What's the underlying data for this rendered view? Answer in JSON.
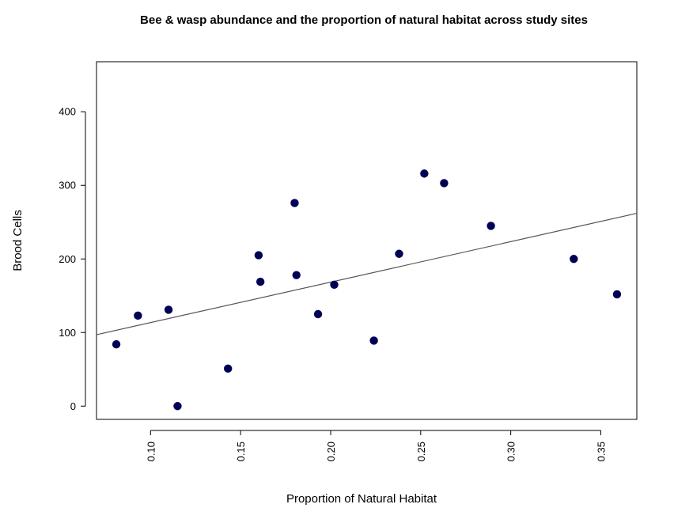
{
  "chart_data": {
    "type": "scatter",
    "title": "Bee & wasp abundance and the proportion of natural habitat across study sites",
    "xlabel": "Proportion of Natural Habitat",
    "ylabel": "Brood Cells",
    "xlim": [
      0.07,
      0.37
    ],
    "ylim": [
      -18,
      468
    ],
    "x_ticks": [
      "0.10",
      "0.15",
      "0.20",
      "0.25",
      "0.30",
      "0.35"
    ],
    "y_ticks": [
      "0",
      "100",
      "200",
      "300",
      "400"
    ],
    "x_tick_values": [
      0.1,
      0.15,
      0.2,
      0.25,
      0.3,
      0.35
    ],
    "y_tick_values": [
      0,
      100,
      200,
      300,
      400
    ],
    "grid": false,
    "point_color": "#000055",
    "trend_line": {
      "from": {
        "x": 0.07,
        "y": 97
      },
      "to": {
        "x": 0.37,
        "y": 262
      },
      "color": "#555555"
    },
    "points": [
      {
        "x": 0.081,
        "y": 84
      },
      {
        "x": 0.093,
        "y": 123
      },
      {
        "x": 0.11,
        "y": 131
      },
      {
        "x": 0.115,
        "y": 0
      },
      {
        "x": 0.143,
        "y": 51
      },
      {
        "x": 0.16,
        "y": 205
      },
      {
        "x": 0.161,
        "y": 169
      },
      {
        "x": 0.18,
        "y": 276
      },
      {
        "x": 0.181,
        "y": 178
      },
      {
        "x": 0.193,
        "y": 125
      },
      {
        "x": 0.202,
        "y": 165
      },
      {
        "x": 0.224,
        "y": 89
      },
      {
        "x": 0.238,
        "y": 207
      },
      {
        "x": 0.252,
        "y": 316
      },
      {
        "x": 0.263,
        "y": 303
      },
      {
        "x": 0.289,
        "y": 245
      },
      {
        "x": 0.335,
        "y": 200
      },
      {
        "x": 0.359,
        "y": 152
      }
    ]
  }
}
